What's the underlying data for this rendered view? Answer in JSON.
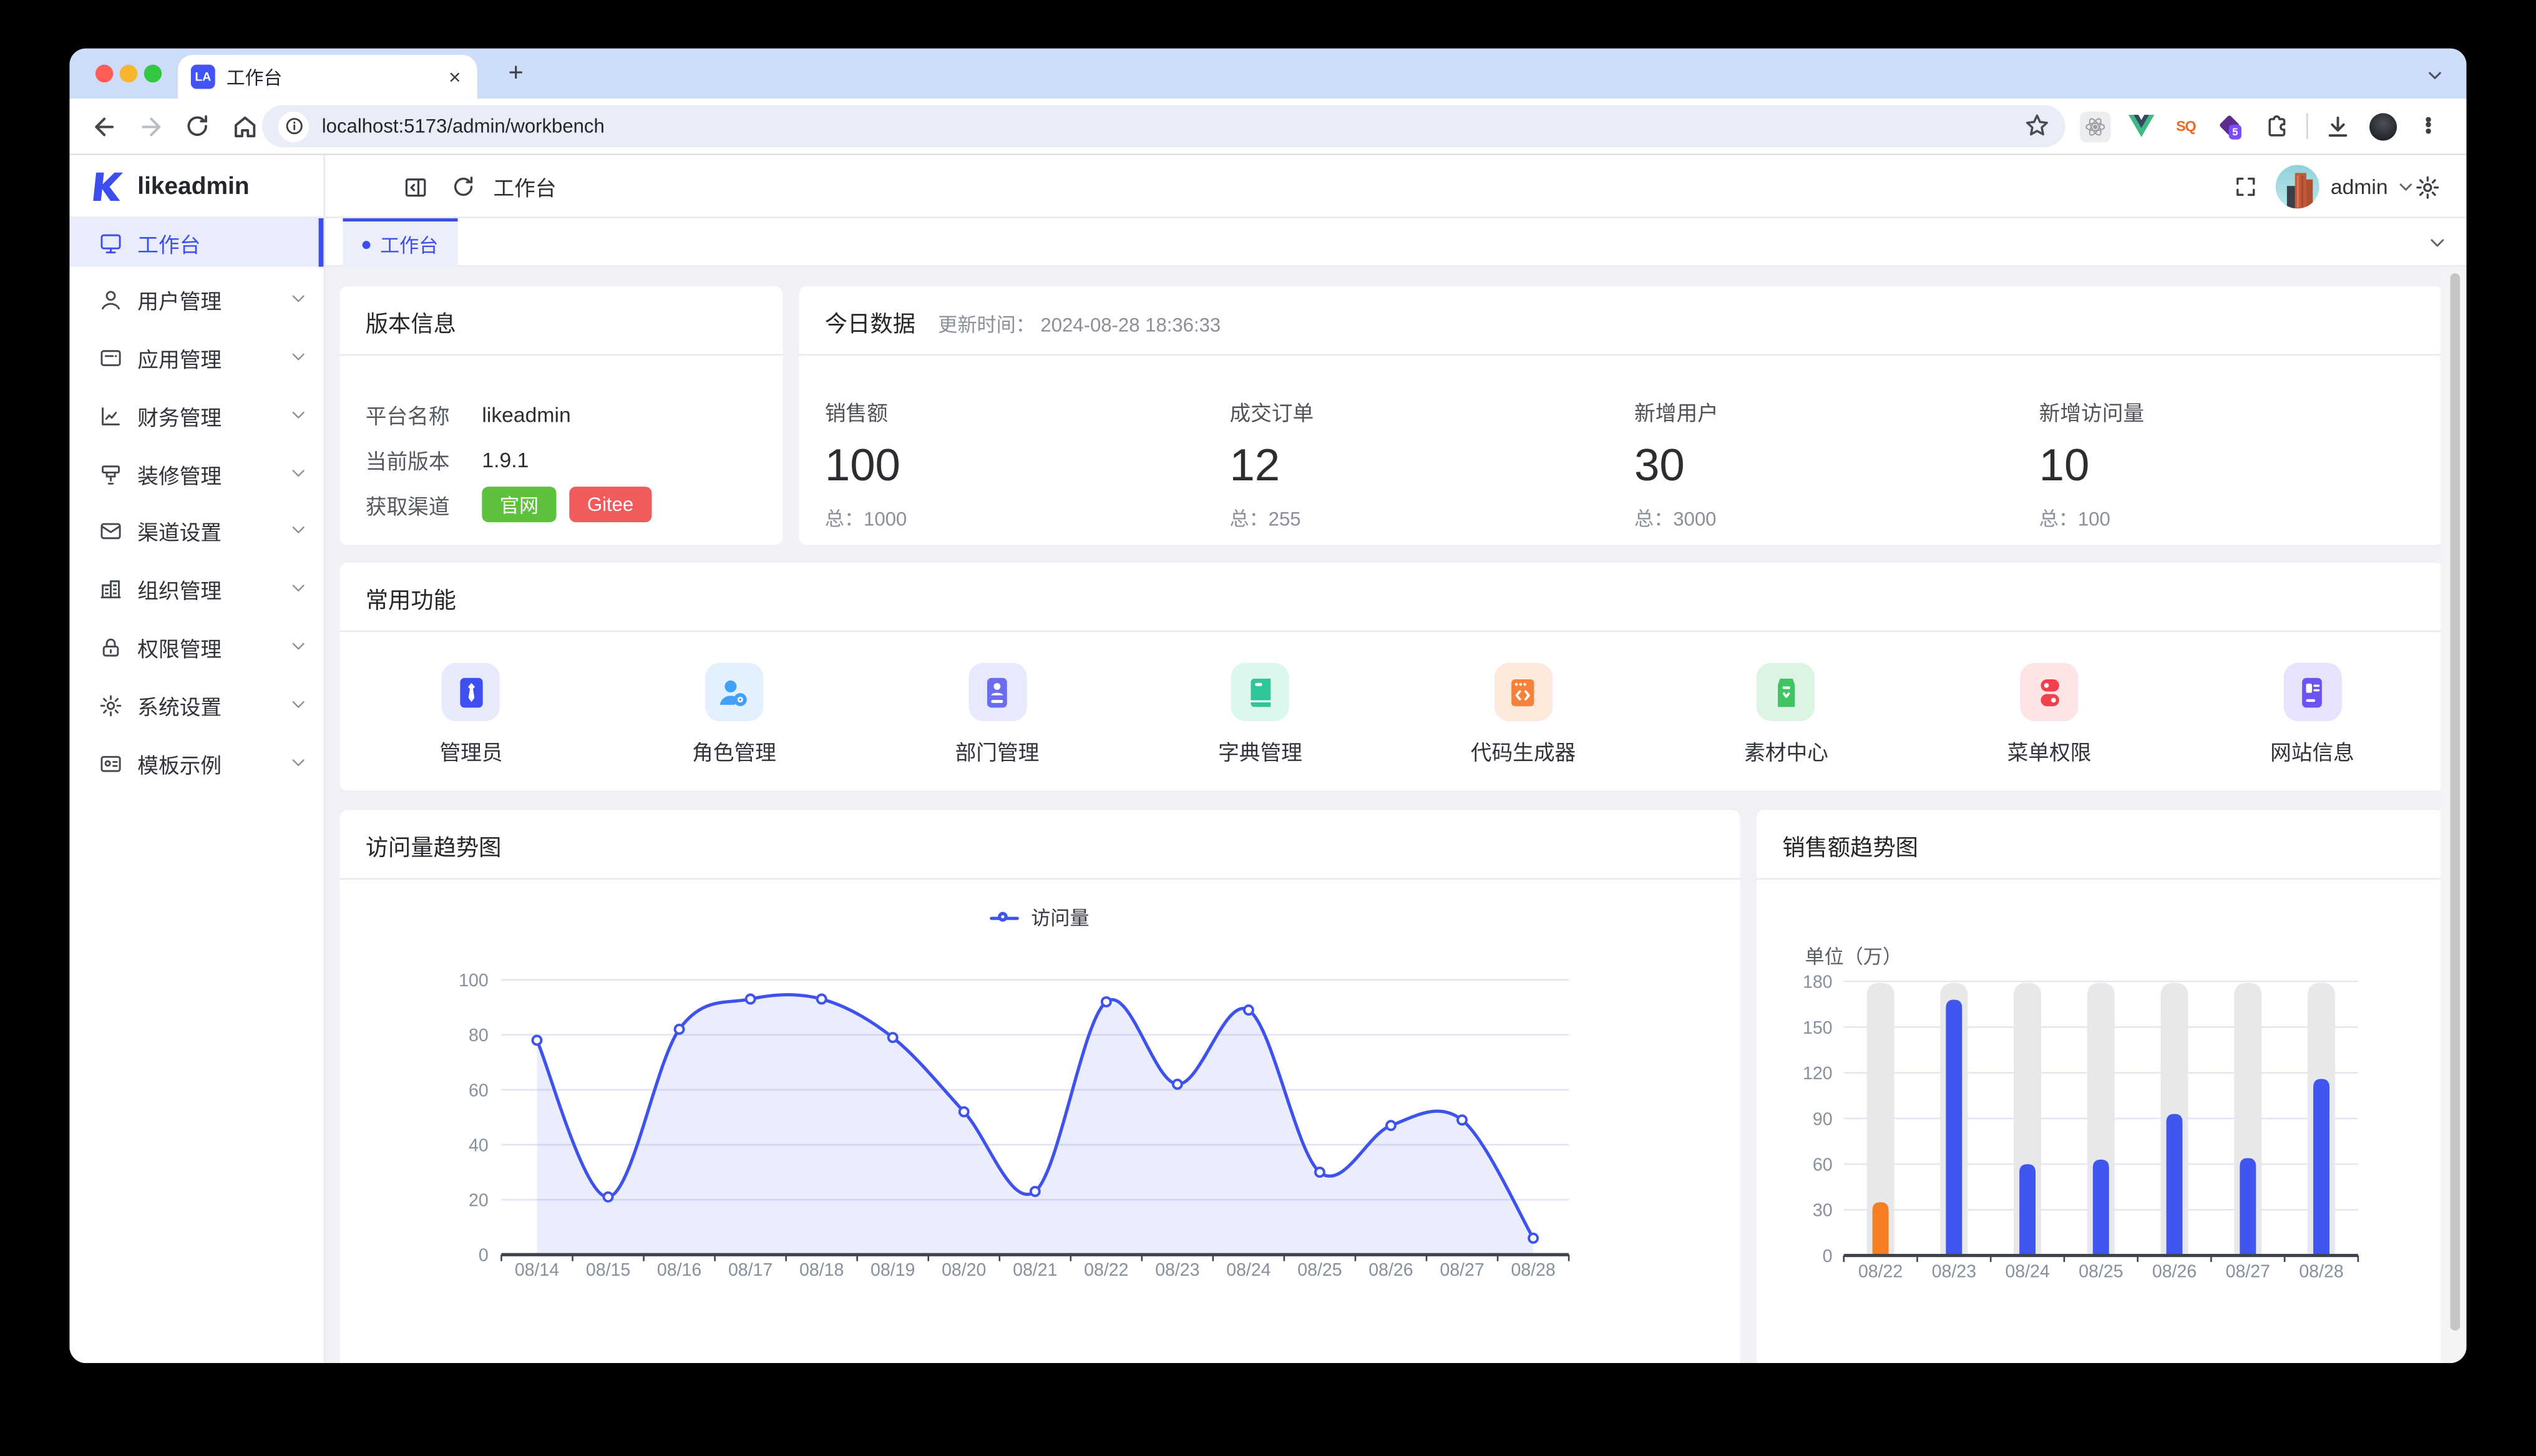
{
  "browser": {
    "tab": {
      "favicon": "LA",
      "title": "工作台",
      "close": "×"
    },
    "new_tab": "+",
    "url": "localhost:5173/admin/workbench",
    "extensions": {
      "sq_label": "SQ",
      "badge5": "5"
    }
  },
  "header": {
    "brand": "likeadmin",
    "breadcrumb": "工作台",
    "username": "admin"
  },
  "sidebar": {
    "items": [
      {
        "label": "工作台",
        "icon": "monitor-icon",
        "active": true,
        "expandable": false
      },
      {
        "label": "用户管理",
        "icon": "user-icon",
        "active": false,
        "expandable": true
      },
      {
        "label": "应用管理",
        "icon": "app-icon",
        "active": false,
        "expandable": true
      },
      {
        "label": "财务管理",
        "icon": "finance-icon",
        "active": false,
        "expandable": true
      },
      {
        "label": "装修管理",
        "icon": "decorate-icon",
        "active": false,
        "expandable": true
      },
      {
        "label": "渠道设置",
        "icon": "channel-icon",
        "active": false,
        "expandable": true
      },
      {
        "label": "组织管理",
        "icon": "org-icon",
        "active": false,
        "expandable": true
      },
      {
        "label": "权限管理",
        "icon": "lock-icon",
        "active": false,
        "expandable": true
      },
      {
        "label": "系统设置",
        "icon": "settings-icon",
        "active": false,
        "expandable": true
      },
      {
        "label": "模板示例",
        "icon": "template-icon",
        "active": false,
        "expandable": true
      }
    ]
  },
  "tabbar": {
    "active_tab": "工作台"
  },
  "version_card": {
    "title": "版本信息",
    "rows": [
      {
        "label": "平台名称",
        "value": "likeadmin"
      },
      {
        "label": "当前版本",
        "value": "1.9.1"
      }
    ],
    "channel_label": "获取渠道",
    "channels": [
      {
        "label": "官网",
        "color": "#5ec13e"
      },
      {
        "label": "Gitee",
        "color": "#f15b5c"
      }
    ]
  },
  "today_card": {
    "title": "今日数据",
    "updated": "更新时间： 2024-08-28 18:36:33",
    "stats": [
      {
        "label": "销售额",
        "value": "100",
        "total": "总：1000"
      },
      {
        "label": "成交订单",
        "value": "12",
        "total": "总：255"
      },
      {
        "label": "新增用户",
        "value": "30",
        "total": "总：3000"
      },
      {
        "label": "新增访问量",
        "value": "10",
        "total": "总：100"
      }
    ]
  },
  "features_card": {
    "title": "常用功能",
    "items": [
      {
        "label": "管理员",
        "icon": "admin-icon",
        "tile": "#e7eafb",
        "color": "#3f4ff0"
      },
      {
        "label": "角色管理",
        "icon": "role-icon",
        "tile": "#e2f1fd",
        "color": "#41a0f7"
      },
      {
        "label": "部门管理",
        "icon": "dept-icon",
        "tile": "#e9e9fd",
        "color": "#6a6df2"
      },
      {
        "label": "字典管理",
        "icon": "dict-icon",
        "tile": "#dcf7ec",
        "color": "#2fc79a"
      },
      {
        "label": "代码生成器",
        "icon": "codegen-icon",
        "tile": "#fdeadc",
        "color": "#f5813a"
      },
      {
        "label": "素材中心",
        "icon": "material-icon",
        "tile": "#dcf5e3",
        "color": "#3fc463"
      },
      {
        "label": "菜单权限",
        "icon": "menu-auth-icon",
        "tile": "#fde5e5",
        "color": "#f4404d"
      },
      {
        "label": "网站信息",
        "icon": "site-info-icon",
        "tile": "#e7e3fd",
        "color": "#6c54f2"
      }
    ]
  },
  "chart_data": [
    {
      "type": "line",
      "title": "访问量趋势图",
      "legend": "访问量",
      "categories": [
        "08/14",
        "08/15",
        "08/16",
        "08/17",
        "08/18",
        "08/19",
        "08/20",
        "08/21",
        "08/22",
        "08/23",
        "08/24",
        "08/25",
        "08/26",
        "08/27",
        "08/28"
      ],
      "values": [
        78,
        21,
        82,
        93,
        93,
        79,
        52,
        23,
        92,
        62,
        89,
        30,
        47,
        49,
        6
      ],
      "ylim": [
        0,
        100
      ],
      "ytick_step": 20,
      "line_color": "#3e52ee",
      "area_opacity": 0.1,
      "grid": true,
      "legend_position": "top-center"
    },
    {
      "type": "bar",
      "title": "销售额趋势图",
      "unit_label": "单位（万）",
      "categories": [
        "08/22",
        "08/23",
        "08/24",
        "08/25",
        "08/26",
        "08/27",
        "08/28"
      ],
      "values": [
        35,
        168,
        60,
        63,
        93,
        64,
        116
      ],
      "bar_colors": [
        "#f57e22",
        "#3f56ef",
        "#3f56ef",
        "#3f56ef",
        "#3f56ef",
        "#3f56ef",
        "#3f56ef"
      ],
      "ylim": [
        0,
        180
      ],
      "ytick_step": 30,
      "track_color": "#e8e8ea",
      "track_max": 179,
      "grid": true
    }
  ]
}
